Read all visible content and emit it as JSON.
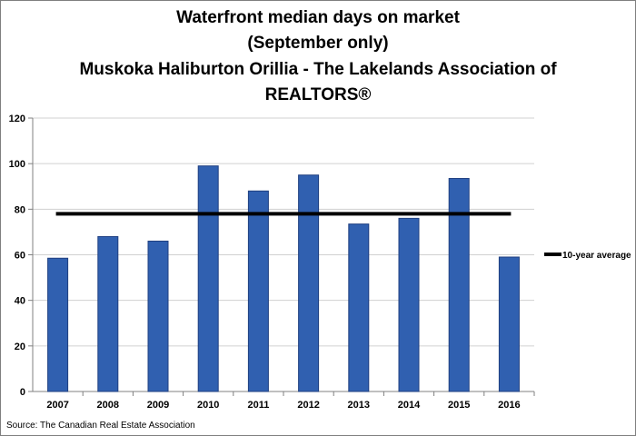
{
  "chart_data": {
    "type": "bar",
    "title": [
      "Waterfront median days on market",
      "(September only)",
      "Muskoka Haliburton Orillia - The Lakelands Association of",
      "REALTORS®"
    ],
    "categories": [
      "2007",
      "2008",
      "2009",
      "2010",
      "2011",
      "2012",
      "2013",
      "2014",
      "2015",
      "2016"
    ],
    "values": [
      58.5,
      68,
      66,
      99,
      88,
      95,
      73.5,
      76,
      93.5,
      59
    ],
    "ylim": [
      0,
      120
    ],
    "yticks": [
      0,
      20,
      40,
      60,
      80,
      100,
      120
    ],
    "grid": true,
    "bar_color": "#3060b0",
    "bar_edge_color": "#1f3f80",
    "reference_line": {
      "name": "10-year average",
      "value": 78,
      "color": "#000000"
    },
    "legend": {
      "placement": "right",
      "entries": [
        "10-year average"
      ]
    },
    "source": "Source: The Canadian Real Estate Association"
  }
}
